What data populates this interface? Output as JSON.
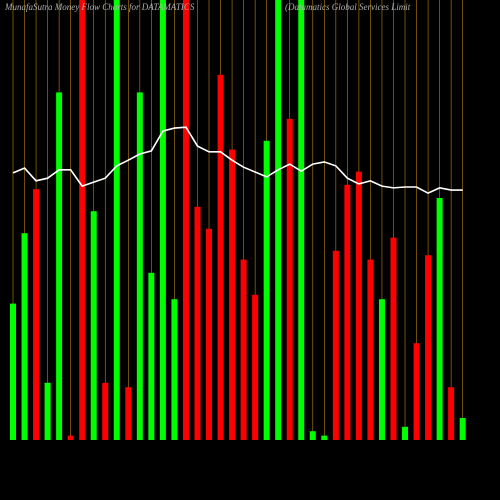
{
  "chart_data": {
    "type": "bar",
    "title": "MunafaSutra  Money Flow Charts for DATAMATICS",
    "subtitle": "(Datamatics Global Services Limit",
    "categories": [
      null,
      null,
      null,
      null,
      null,
      null,
      null,
      null,
      null,
      null,
      null,
      null,
      null,
      null,
      null,
      null,
      null,
      null,
      null,
      null,
      null,
      null,
      null,
      null,
      null,
      null,
      null,
      null,
      null,
      null,
      null,
      null,
      null,
      null,
      null,
      null,
      null,
      null,
      null,
      null
    ],
    "values": [
      31,
      47,
      57,
      13,
      79,
      1,
      100,
      52,
      13,
      100,
      12,
      79,
      38,
      100,
      32,
      100,
      53,
      48,
      83,
      66,
      41,
      33,
      68,
      100,
      73,
      100,
      2,
      1,
      43,
      58,
      61,
      41,
      32,
      46,
      3,
      22,
      42,
      55,
      12,
      5
    ],
    "bar_colors": [
      "#00ff00",
      "#00ff00",
      "#ff0000",
      "#00ff00",
      "#00ff00",
      "#ff0000",
      "#ff0000",
      "#00ff00",
      "#ff0000",
      "#00ff00",
      "#ff0000",
      "#00ff00",
      "#00ff00",
      "#00ff00",
      "#00ff00",
      "#ff0000",
      "#ff0000",
      "#ff0000",
      "#ff0000",
      "#ff0000",
      "#ff0000",
      "#ff0000",
      "#00ff00",
      "#00ff00",
      "#ff0000",
      "#00ff00",
      "#00ff00",
      "#00ff00",
      "#ff0000",
      "#ff0000",
      "#ff0000",
      "#ff0000",
      "#00ff00",
      "#ff0000",
      "#00ff00",
      "#ff0000",
      "#ff0000",
      "#00ff00",
      "#ff0000",
      "#00ff00"
    ],
    "line_values": [
      60.7,
      61.8,
      58.9,
      59.5,
      61.4,
      61.4,
      57.7,
      58.6,
      59.5,
      62.3,
      63.6,
      65,
      65.7,
      70.2,
      70.9,
      71.1,
      66.8,
      65.5,
      65.5,
      63.6,
      62,
      60.9,
      59.8,
      61.4,
      62.7,
      61.1,
      62.7,
      63.2,
      62.3,
      59.5,
      58.2,
      58.9,
      57.7,
      57.3,
      57.5,
      57.5,
      56.1,
      57.3,
      56.8,
      56.8
    ],
    "line_color": "#ffffff",
    "grid_color": "#b8860b",
    "ylim": [
      0,
      100
    ]
  }
}
